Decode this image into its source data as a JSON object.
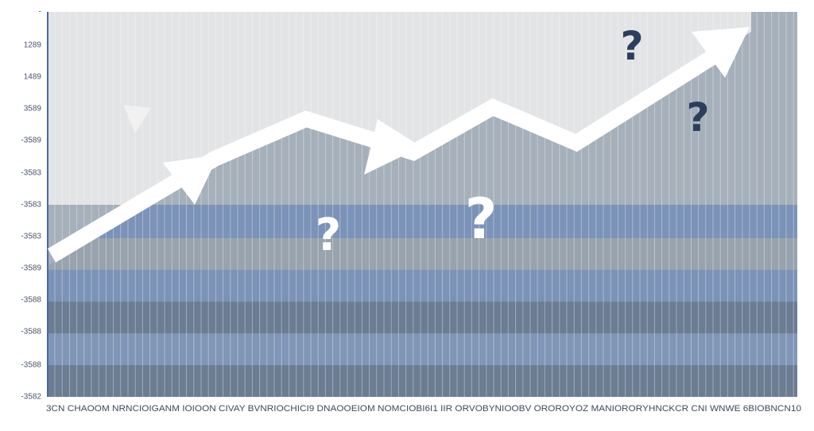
{
  "y_axis_labels": [
    "-",
    "1289",
    "1489",
    "3589",
    "-3589",
    "-3583",
    "-3583",
    "-3583",
    "-3589",
    "-3588",
    "-3588",
    "-3588",
    "-3582"
  ],
  "x_axis_text": "3CN CHAOOM NRNCIOIGANM IOIOON CIVAY BVNRIOCHICI9 DNAOOEIOM NOMCIOBI6I1 IIR ORVOBYNIOOBV OROROYOZ MANIORORYHNCKCR CNI WNWE 6BIOBNCN10",
  "question_marks": [
    "?",
    "?",
    "?",
    "?"
  ]
}
